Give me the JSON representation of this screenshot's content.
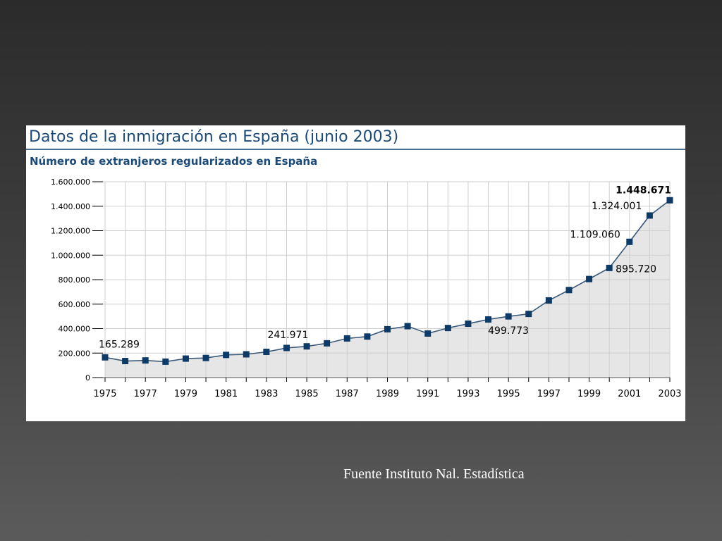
{
  "slide": {
    "source_note": "Fuente Instituto Nal. Estadística"
  },
  "chart_data": {
    "type": "area",
    "title": "Datos de la inmigración en España (junio 2003)",
    "subtitle": "Número de extranjeros regularizados en España",
    "xlabel": "",
    "ylabel": "",
    "grid": true,
    "ylim": [
      0,
      1600000
    ],
    "y_ticks": [
      0,
      200000,
      400000,
      600000,
      800000,
      1000000,
      1200000,
      1400000,
      1600000
    ],
    "y_tick_labels": [
      "0",
      "200.000",
      "400.000",
      "600.000",
      "800.000",
      "1.000.000",
      "1.200.000",
      "1.400.000",
      "1.600.000"
    ],
    "x_tick_labels": [
      "1975",
      "1977",
      "1979",
      "1981",
      "1983",
      "1985",
      "1987",
      "1989",
      "1991",
      "1993",
      "1995",
      "1997",
      "1999",
      "2001",
      "2003"
    ],
    "x": [
      1975,
      1976,
      1977,
      1978,
      1979,
      1980,
      1981,
      1982,
      1983,
      1984,
      1985,
      1986,
      1987,
      1988,
      1989,
      1990,
      1991,
      1992,
      1993,
      1994,
      1995,
      1996,
      1997,
      1998,
      1999,
      2000,
      2001,
      2002,
      2003
    ],
    "series": [
      {
        "values": [
          165289,
          135000,
          140000,
          130000,
          155000,
          160000,
          185000,
          190000,
          210000,
          241971,
          255000,
          280000,
          320000,
          335000,
          395000,
          420000,
          360000,
          405000,
          440000,
          475000,
          499773,
          520000,
          630000,
          715000,
          805000,
          895720,
          1109060,
          1324001,
          1448671
        ]
      }
    ],
    "annotations": [
      {
        "x": 1975,
        "text": "165.289",
        "bold": false
      },
      {
        "x": 1984,
        "text": "241.971",
        "bold": false
      },
      {
        "x": 1995,
        "text": "499.773",
        "bold": false
      },
      {
        "x": 2000,
        "text": "895.720",
        "bold": false
      },
      {
        "x": 2001,
        "text": "1.109.060",
        "bold": false
      },
      {
        "x": 2002,
        "text": "1.324.001",
        "bold": false
      },
      {
        "x": 2003,
        "text": "1.448.671",
        "bold": true
      }
    ],
    "colors": {
      "line": "#3a5a7a",
      "marker": "#0d3a66",
      "area": "#e6e6e6",
      "grid": "#cfcfcf",
      "title": "#1a4a7a"
    }
  }
}
